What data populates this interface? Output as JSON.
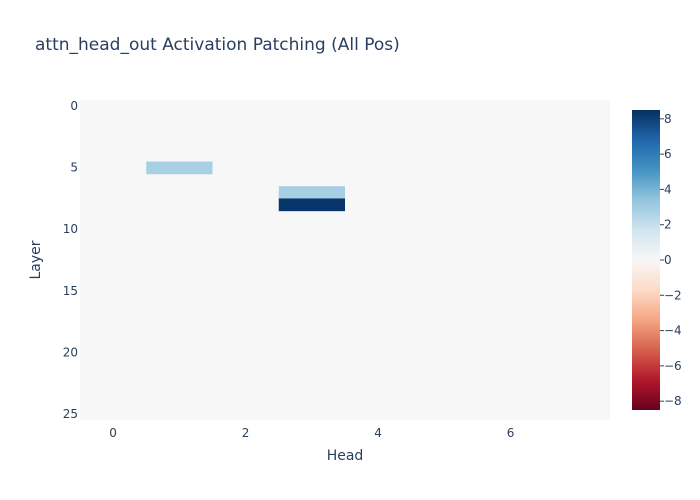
{
  "chart_data": {
    "type": "heatmap",
    "title": "attn_head_out Activation Patching (All Pos)",
    "xlabel": "Head",
    "ylabel": "Layer",
    "n_heads": 8,
    "n_layers": 26,
    "x_ticks": [
      0,
      2,
      4,
      6
    ],
    "y_ticks": [
      0,
      5,
      10,
      15,
      20,
      25
    ],
    "colorbar": {
      "min": -8.5,
      "max": 8.5,
      "ticks": [
        8,
        6,
        4,
        2,
        0,
        -2,
        -4,
        -6,
        -8
      ],
      "tick_labels": [
        "8",
        "6",
        "4",
        "2",
        "0",
        "−2",
        "−4",
        "−6",
        "−8"
      ],
      "colorscale": [
        "#67001f",
        "#b2182b",
        "#d6604d",
        "#f4a582",
        "#fddbc7",
        "#f7f7f7",
        "#d1e5f0",
        "#92c5de",
        "#4393c3",
        "#2166ac",
        "#053061"
      ]
    },
    "default_value": 0,
    "nonzero_cells": [
      {
        "layer": 5,
        "head": 1,
        "value": 2.8
      },
      {
        "layer": 7,
        "head": 3,
        "value": 2.8
      },
      {
        "layer": 8,
        "head": 3,
        "value": 8.3
      }
    ]
  }
}
